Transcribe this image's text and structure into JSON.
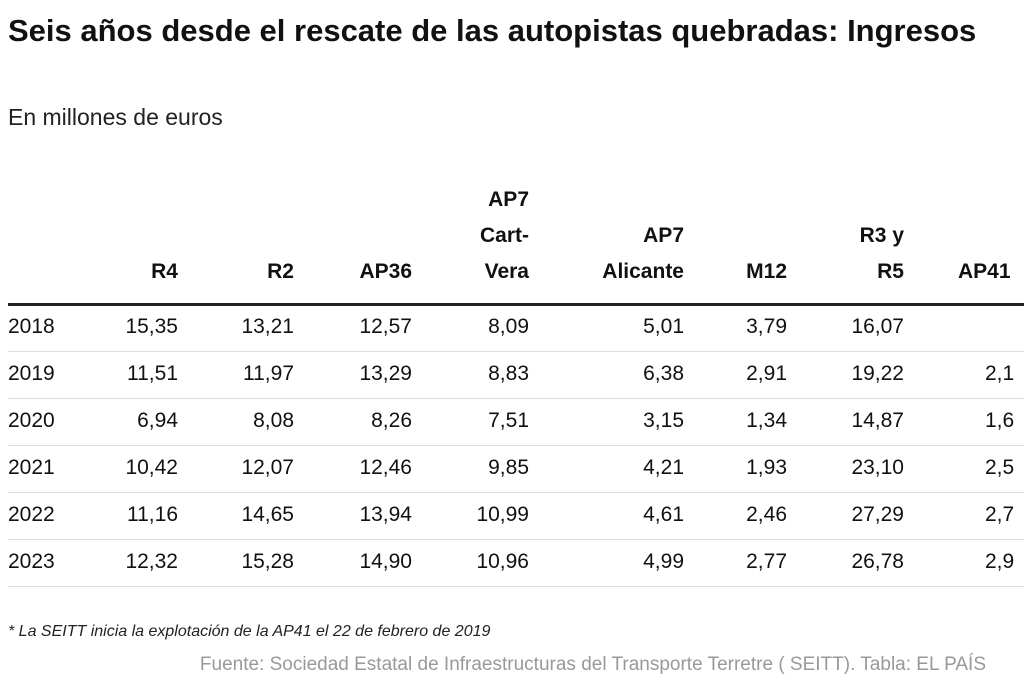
{
  "header": {
    "title": "Seis años desde el rescate de las autopistas quebradas: Ingresos",
    "subtitle": "En millones de euros"
  },
  "table": {
    "columns": [
      null,
      "R4",
      "R2",
      "AP36",
      "AP7 Cart-Vera",
      "AP7 Alicante",
      "M12",
      "R3 y R5",
      "AP41"
    ],
    "rows": [
      [
        "2018",
        "15,35",
        "13,21",
        "12,57",
        "8,09",
        "5,01",
        "3,79",
        "16,07",
        null
      ],
      [
        "2019",
        "11,51",
        "11,97",
        "13,29",
        "8,83",
        "6,38",
        "2,91",
        "19,22",
        "2,1"
      ],
      [
        "2020",
        "6,94",
        "8,08",
        "8,26",
        "7,51",
        "3,15",
        "1,34",
        "14,87",
        "1,6"
      ],
      [
        "2021",
        "10,42",
        "12,07",
        "12,46",
        "9,85",
        "4,21",
        "1,93",
        "23,10",
        "2,5"
      ],
      [
        "2022",
        "11,16",
        "14,65",
        "13,94",
        "10,99",
        "4,61",
        "2,46",
        "27,29",
        "2,7"
      ],
      [
        "2023",
        "12,32",
        "15,28",
        "14,90",
        "10,96",
        "4,99",
        "2,77",
        "26,78",
        "2,9"
      ]
    ]
  },
  "footnote": "* La SEITT inicia la explotación de la AP41 el 22 de febrero de 2019",
  "source": "Fuente: Sociedad Estatal de Infraestructuras del Transporte Terretre ( SEITT). Tabla: EL PAÍS"
}
